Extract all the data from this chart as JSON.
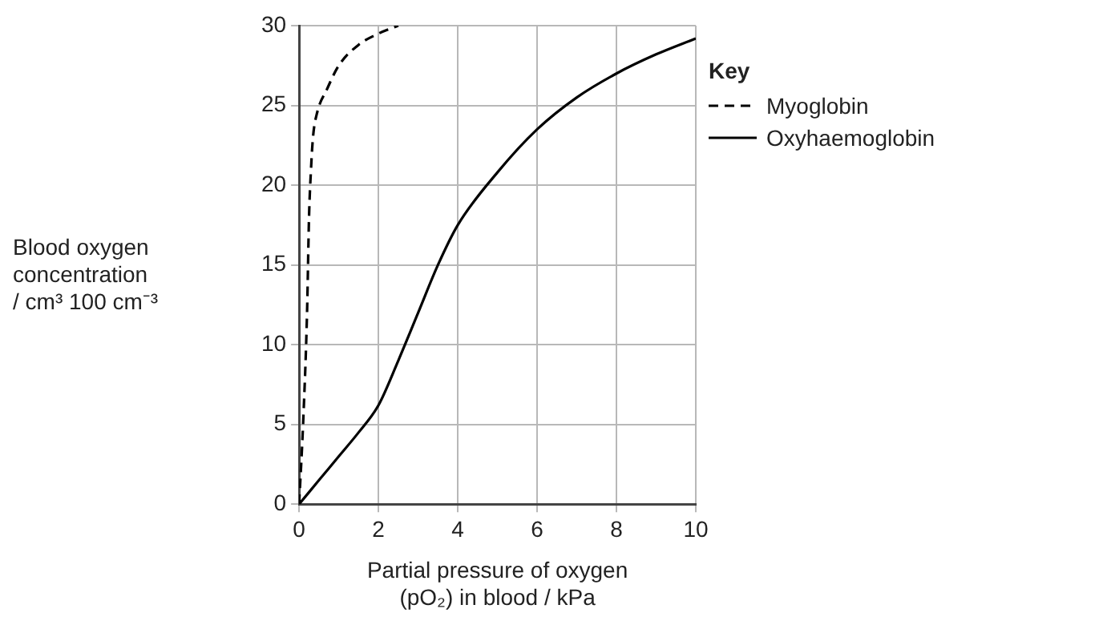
{
  "chart_data": {
    "type": "line",
    "xlabel": "Partial pressure of oxygen\n(pO₂) in blood / kPa",
    "ylabel": "Blood oxygen\nconcentration\n/ cm³ 100 cm⁻³",
    "legend_title": "Key",
    "legend": "right",
    "grid": true,
    "marker": "none",
    "xlim": [
      0,
      10
    ],
    "xticks": [
      0,
      2,
      4,
      6,
      8,
      10
    ],
    "ylim": [
      0,
      30
    ],
    "yticks": [
      0,
      5,
      10,
      15,
      20,
      25,
      30
    ],
    "series": [
      {
        "name": "Myoglobin",
        "color": "#000000",
        "line_style": "dashed",
        "x": [
          0,
          0.1,
          0.2,
          0.25,
          0.3,
          0.35,
          0.45,
          0.7,
          1,
          1.5,
          2,
          2.5
        ],
        "values": [
          0,
          5,
          12,
          18,
          21,
          23,
          24.5,
          26,
          27.5,
          28.8,
          29.5,
          30
        ]
      },
      {
        "name": "Oxyhaemoglobin",
        "color": "#000000",
        "line_style": "solid",
        "x": [
          0,
          0.5,
          1,
          1.5,
          2,
          2.5,
          3,
          3.5,
          4,
          5,
          6,
          7,
          8,
          9,
          10
        ],
        "values": [
          0,
          1.5,
          3,
          4.5,
          6.2,
          9,
          12,
          15,
          17.5,
          20.8,
          23.5,
          25.5,
          27,
          28.2,
          29.2
        ]
      }
    ]
  }
}
